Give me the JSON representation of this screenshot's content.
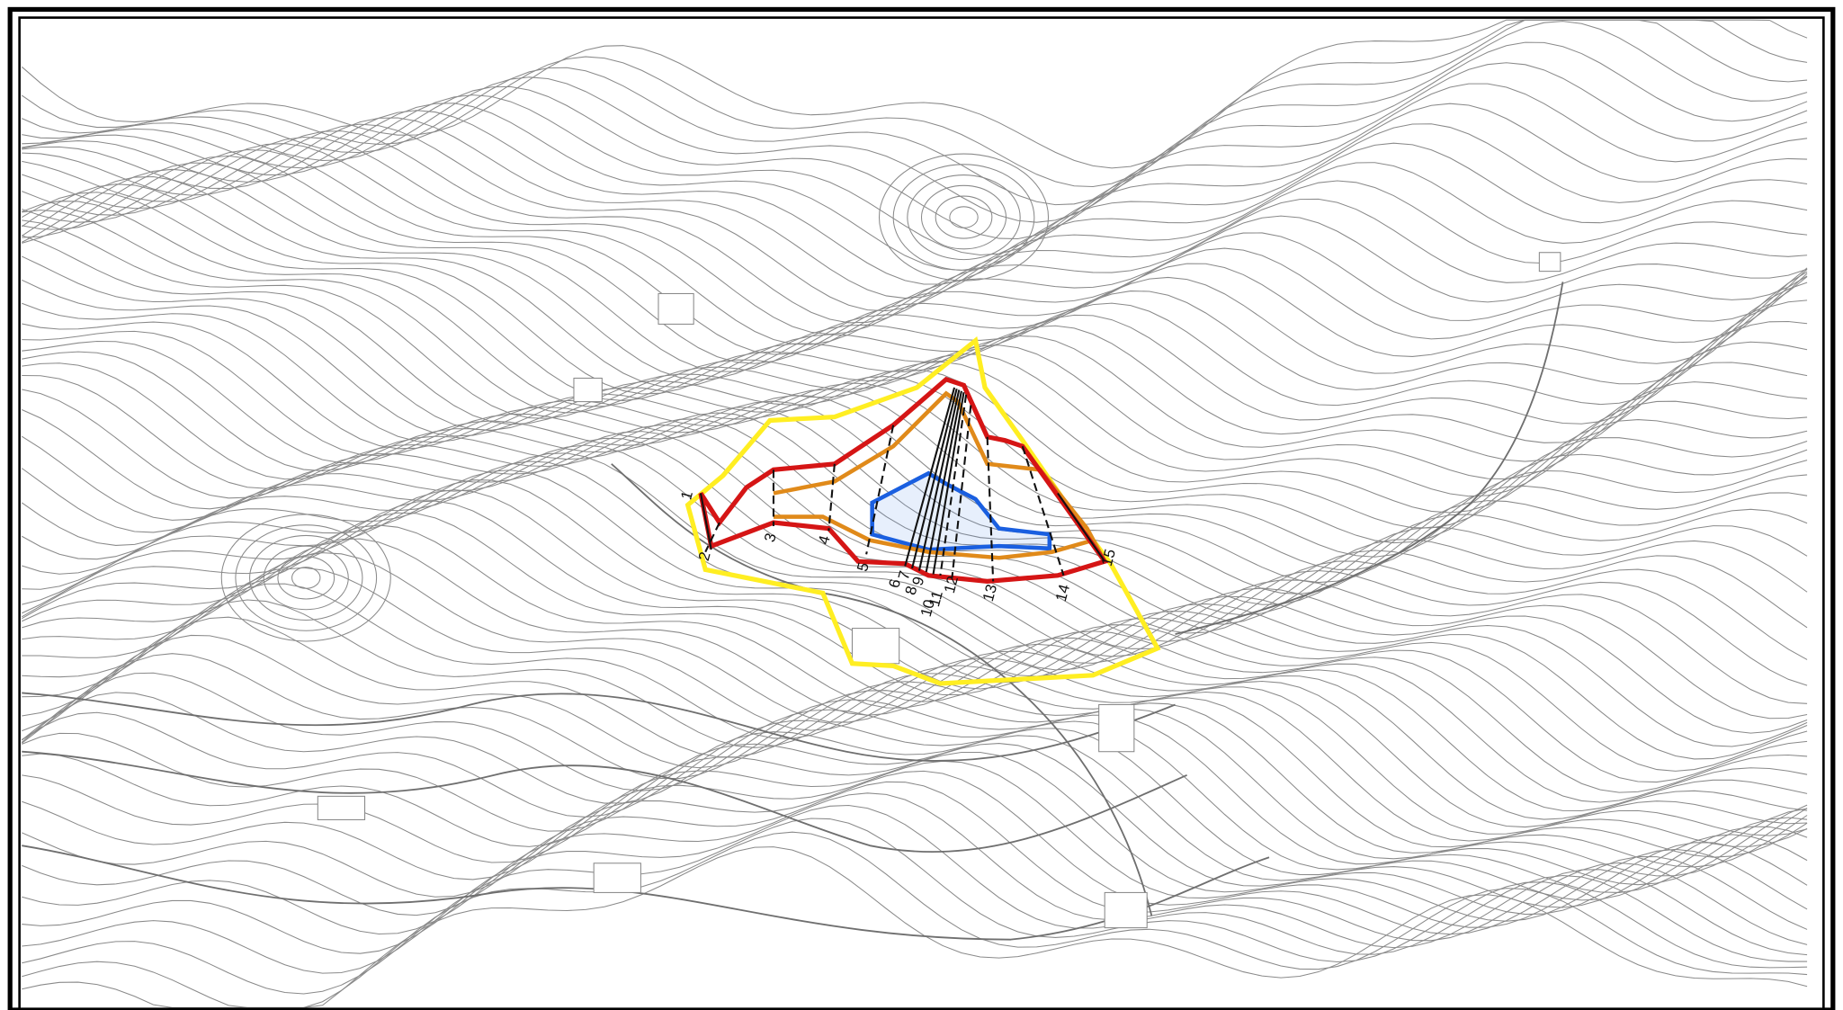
{
  "map": {
    "section_labels": [
      "1",
      "2",
      "3",
      "4",
      "5",
      "6",
      "7",
      "8",
      "9",
      "10",
      "11",
      "12",
      "13",
      "14",
      "15"
    ]
  }
}
